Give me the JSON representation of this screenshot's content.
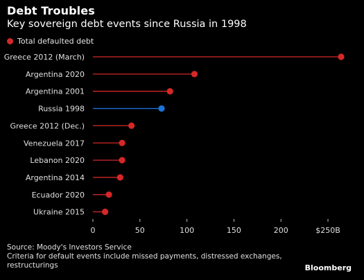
{
  "title": "Debt Troubles",
  "subtitle": "Key sovereign debt events since Russia in 1998",
  "legend": {
    "label": "Total defaulted debt",
    "color": "#d62728"
  },
  "colors": {
    "default": "#d62728",
    "highlight": "#1a73d9",
    "axis": "#bfbfbf"
  },
  "chart_data": {
    "type": "bar",
    "style": "lollipop",
    "orientation": "horizontal",
    "categories": [
      "Greece 2012 (March)",
      "Argentina 2020",
      "Argentina 2001",
      "Russia 1998",
      "Greece 2012 (Dec.)",
      "Venezuela 2017",
      "Lebanon 2020",
      "Argentina 2014",
      "Ecuador 2020",
      "Ukraine 2015"
    ],
    "series": [
      {
        "name": "Total defaulted debt",
        "values": [
          264,
          108,
          82,
          73,
          41,
          31,
          31,
          29,
          17,
          13
        ]
      }
    ],
    "highlight_category": "Russia 1998",
    "xlim": [
      0,
      264
    ],
    "xticks": [
      0,
      50,
      100,
      150,
      200,
      250
    ],
    "xtick_labels": [
      "0",
      "50",
      "100",
      "150",
      "200",
      "$250B"
    ],
    "grid": false,
    "legend_position": "top-left"
  },
  "footer": {
    "source": "Source: Moody's Investors Service",
    "note": "Criteria for default events include missed payments, distressed exchanges, restructurings"
  },
  "brand": "Bloomberg"
}
